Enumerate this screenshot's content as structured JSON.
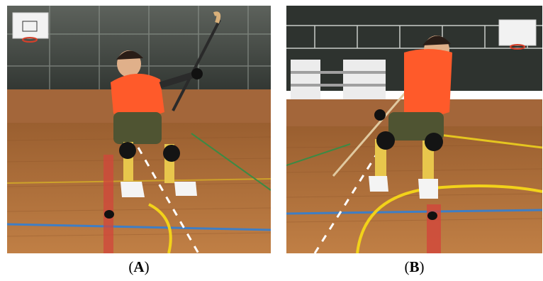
{
  "panels": [
    {
      "label_open": "(",
      "label_letter": "A",
      "label_close": ")"
    },
    {
      "label_open": "(",
      "label_letter": "B",
      "label_close": ")"
    }
  ],
  "colors": {
    "floor": "#b5753e",
    "floor_dark": "#8a5228",
    "wall": "#3a4038",
    "bib": "#ff5a2a",
    "court_blue": "#3f7ec4",
    "court_yellow": "#f2d21a",
    "court_red": "#d2463b"
  }
}
